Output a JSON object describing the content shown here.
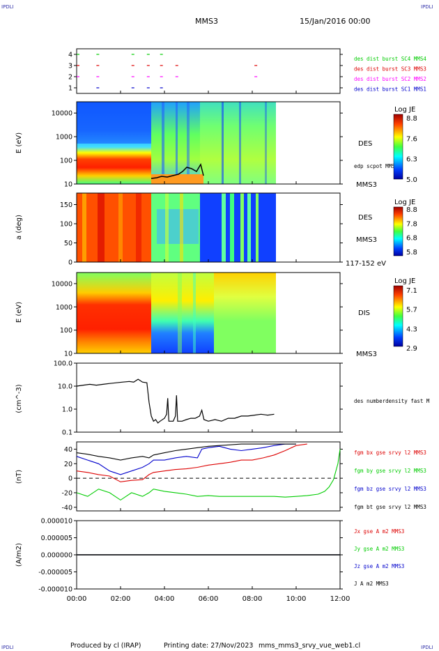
{
  "header": {
    "corner_tl": "IPDLI",
    "corner_tr": "IPDLI",
    "corner_bl": "IPDLI",
    "corner_br": "IPDLI",
    "title": "MMS3",
    "date": "15/Jan/2016 00:00"
  },
  "footer": {
    "produced_by": "Produced by cl (IRAP)",
    "printing_date": "Printing date: 27/Nov/2023",
    "filename": "mms_mms3_srvy_vue_web1.cl"
  },
  "colors": {
    "c1": "#0000cc",
    "c2": "#ff00ff",
    "c3": "#dd0000",
    "c4": "#00cc00",
    "black": "#000000",
    "corner_label": "#3333aa"
  },
  "chart_data": [
    {
      "type": "scatter",
      "id": "burst",
      "yticks": [
        "1",
        "2",
        "3",
        "4"
      ],
      "ylim": [
        0.5,
        4.5
      ],
      "xlim": [
        0,
        12
      ],
      "legend_placement": "right",
      "series": [
        {
          "name": "des dist burst SC1 MMS1",
          "level": 1,
          "color": "#0000cc",
          "x": [
            0.9,
            2.5,
            3.2,
            3.8
          ]
        },
        {
          "name": "des dist burst SC2 MMS2",
          "level": 2,
          "color": "#ff00ff",
          "x": [
            0.0,
            0.9,
            2.5,
            3.2,
            3.8,
            4.5,
            8.1
          ]
        },
        {
          "name": "des dist burst SC3 MMS3",
          "level": 3,
          "color": "#dd0000",
          "x": [
            0.0,
            0.9,
            2.5,
            3.2,
            3.8,
            4.5,
            8.1
          ]
        },
        {
          "name": "des dist burst SC4 MMS4",
          "level": 4,
          "color": "#00cc00",
          "x": [
            0.0,
            0.9,
            2.5,
            3.2,
            3.8
          ]
        }
      ]
    },
    {
      "type": "heatmap",
      "id": "des_energy",
      "ylabel": "E (eV)",
      "yscale": "log",
      "ylim": [
        10,
        30000
      ],
      "yticks": [
        "10",
        "100",
        "1000",
        "10000"
      ],
      "instrument": "DES",
      "spacecraft": "MMS3",
      "colorbar": {
        "label": "Log JE",
        "ticks": [
          "8.8",
          "7.6",
          "6.3",
          "5.0"
        ]
      },
      "overlay": {
        "name": "edp scpot MMS3",
        "color": "#000000"
      }
    },
    {
      "type": "heatmap",
      "id": "des_pitch",
      "ylabel": "a (deg)",
      "ylim": [
        0,
        180
      ],
      "yticks": [
        "0",
        "50",
        "100",
        "150"
      ],
      "instrument": "DES",
      "spacecraft": "MMS3",
      "energy_range": "117-152 eV",
      "colorbar": {
        "label": "Log JE",
        "ticks": [
          "8.8",
          "7.8",
          "6.8",
          "5.8"
        ]
      }
    },
    {
      "type": "heatmap",
      "id": "dis_energy",
      "ylabel": "E (eV)",
      "yscale": "log",
      "ylim": [
        10,
        30000
      ],
      "yticks": [
        "10",
        "100",
        "1000",
        "10000"
      ],
      "instrument": "DIS",
      "spacecraft": "MMS3",
      "colorbar": {
        "label": "Log JE",
        "ticks": [
          "7.1",
          "5.7",
          "4.3",
          "2.9"
        ]
      }
    },
    {
      "type": "line",
      "id": "density",
      "ylabel": "(cm^-3)",
      "yscale": "log",
      "ylim": [
        0.1,
        100
      ],
      "yticks": [
        "0.1",
        "1.0",
        "10.0",
        "100.0"
      ],
      "series": [
        {
          "name": "des numberdensity fast M",
          "color": "#000000",
          "x": [
            0.0,
            0.3,
            0.6,
            0.9,
            1.2,
            1.5,
            1.8,
            2.1,
            2.4,
            2.6,
            2.8,
            3.0,
            3.2,
            3.3,
            3.4,
            3.5,
            3.6,
            3.7,
            3.8,
            4.0,
            4.1,
            4.15,
            4.2,
            4.4,
            4.5,
            4.55,
            4.6,
            4.8,
            5.0,
            5.2,
            5.4,
            5.6,
            5.7,
            5.8,
            6.0,
            6.3,
            6.6,
            6.9,
            7.2,
            7.5,
            7.8,
            8.1,
            8.4,
            8.7,
            9.0
          ],
          "values": [
            10,
            11,
            12,
            11,
            12,
            13,
            14,
            15,
            16,
            15,
            20,
            15,
            14,
            2.0,
            0.5,
            0.3,
            0.35,
            0.25,
            0.3,
            0.4,
            0.6,
            3.0,
            0.3,
            0.3,
            0.5,
            4.0,
            0.3,
            0.3,
            0.35,
            0.4,
            0.4,
            0.5,
            0.9,
            0.35,
            0.3,
            0.35,
            0.3,
            0.4,
            0.4,
            0.5,
            0.5,
            0.55,
            0.6,
            0.55,
            0.6
          ]
        }
      ]
    },
    {
      "type": "line",
      "id": "bfield",
      "ylabel": "(nT)",
      "ylim": [
        -45,
        50
      ],
      "yticks": [
        "-40",
        "-20",
        "0",
        "20",
        "40"
      ],
      "zero_line": "dashed",
      "series": [
        {
          "name": "fgm bx gse srvy l2 MMS3",
          "color": "#dd0000",
          "x": [
            0,
            0.5,
            1,
            1.5,
            2,
            2.5,
            3,
            3.3,
            3.5,
            4,
            4.5,
            5,
            5.5,
            6,
            6.5,
            7,
            7.5,
            8,
            8.5,
            9,
            9.5,
            10,
            10.5
          ],
          "values": [
            10,
            8,
            5,
            3,
            -5,
            -3,
            -2,
            5,
            8,
            10,
            12,
            13,
            15,
            18,
            20,
            22,
            25,
            25,
            28,
            32,
            38,
            45,
            50
          ]
        },
        {
          "name": "fgm by gse srvy l2 MMS3",
          "color": "#00cc00",
          "x": [
            0,
            0.5,
            1,
            1.5,
            2,
            2.5,
            3,
            3.3,
            3.5,
            4,
            4.5,
            5,
            5.5,
            6,
            6.5,
            7,
            7.5,
            8,
            8.5,
            9,
            9.5,
            10,
            10.5,
            11,
            11.3,
            11.5,
            11.7,
            11.9,
            12
          ],
          "values": [
            -20,
            -25,
            -15,
            -20,
            -30,
            -20,
            -25,
            -20,
            -15,
            -18,
            -20,
            -22,
            -25,
            -24,
            -25,
            -25,
            -25,
            -25,
            -25,
            -25,
            -26,
            -25,
            -24,
            -22,
            -18,
            -12,
            -2,
            20,
            40
          ]
        },
        {
          "name": "fgm bz gse srvy l2 MMS3",
          "color": "#0000cc",
          "x": [
            0,
            0.5,
            1,
            1.5,
            2,
            2.5,
            3,
            3.3,
            3.5,
            4,
            4.5,
            5,
            5.5,
            5.7,
            6,
            6.5,
            7,
            7.5,
            8,
            8.5,
            9,
            9.5,
            10
          ],
          "values": [
            30,
            25,
            20,
            10,
            5,
            10,
            15,
            20,
            25,
            25,
            28,
            30,
            28,
            40,
            42,
            44,
            40,
            38,
            40,
            42,
            45,
            48,
            50
          ]
        },
        {
          "name": "fgm bt gse srvy l2 MMS3",
          "color": "#000000",
          "x": [
            0,
            0.5,
            1,
            1.5,
            2,
            2.5,
            3,
            3.3,
            3.5,
            4,
            4.5,
            5,
            5.5,
            6,
            6.5,
            7,
            7.5,
            8,
            8.5,
            9,
            9.5,
            10
          ],
          "values": [
            35,
            33,
            30,
            28,
            25,
            28,
            30,
            28,
            32,
            35,
            38,
            40,
            42,
            44,
            45,
            46,
            47,
            48,
            50,
            52,
            53,
            54
          ]
        }
      ]
    },
    {
      "type": "line",
      "id": "current",
      "ylabel": "(A/m2)",
      "ylim": [
        -0.0001,
        0.0001
      ],
      "yticks": [
        "-0.000010",
        "-0.000005",
        "0.000000",
        "0.000005",
        "0.000010"
      ],
      "series": [
        {
          "name": "Jx gse A m2 MMS3",
          "color": "#dd0000",
          "x": [
            0,
            12
          ],
          "values": [
            0,
            0
          ]
        },
        {
          "name": "Jy gse A m2 MMS3",
          "color": "#00cc00",
          "x": [
            0,
            12
          ],
          "values": [
            0,
            0
          ]
        },
        {
          "name": "Jz gse A m2 MMS3",
          "color": "#0000cc",
          "x": [
            0,
            12
          ],
          "values": [
            0,
            0
          ]
        },
        {
          "name": "J A m2 MMS3",
          "color": "#000000",
          "x": [
            0,
            12
          ],
          "values": [
            0,
            0
          ]
        }
      ]
    }
  ],
  "time_axis": {
    "xlim": [
      0,
      12
    ],
    "ticks": [
      "00:00",
      "02:00",
      "04:00",
      "06:00",
      "08:00",
      "10:00",
      "12:00"
    ]
  }
}
